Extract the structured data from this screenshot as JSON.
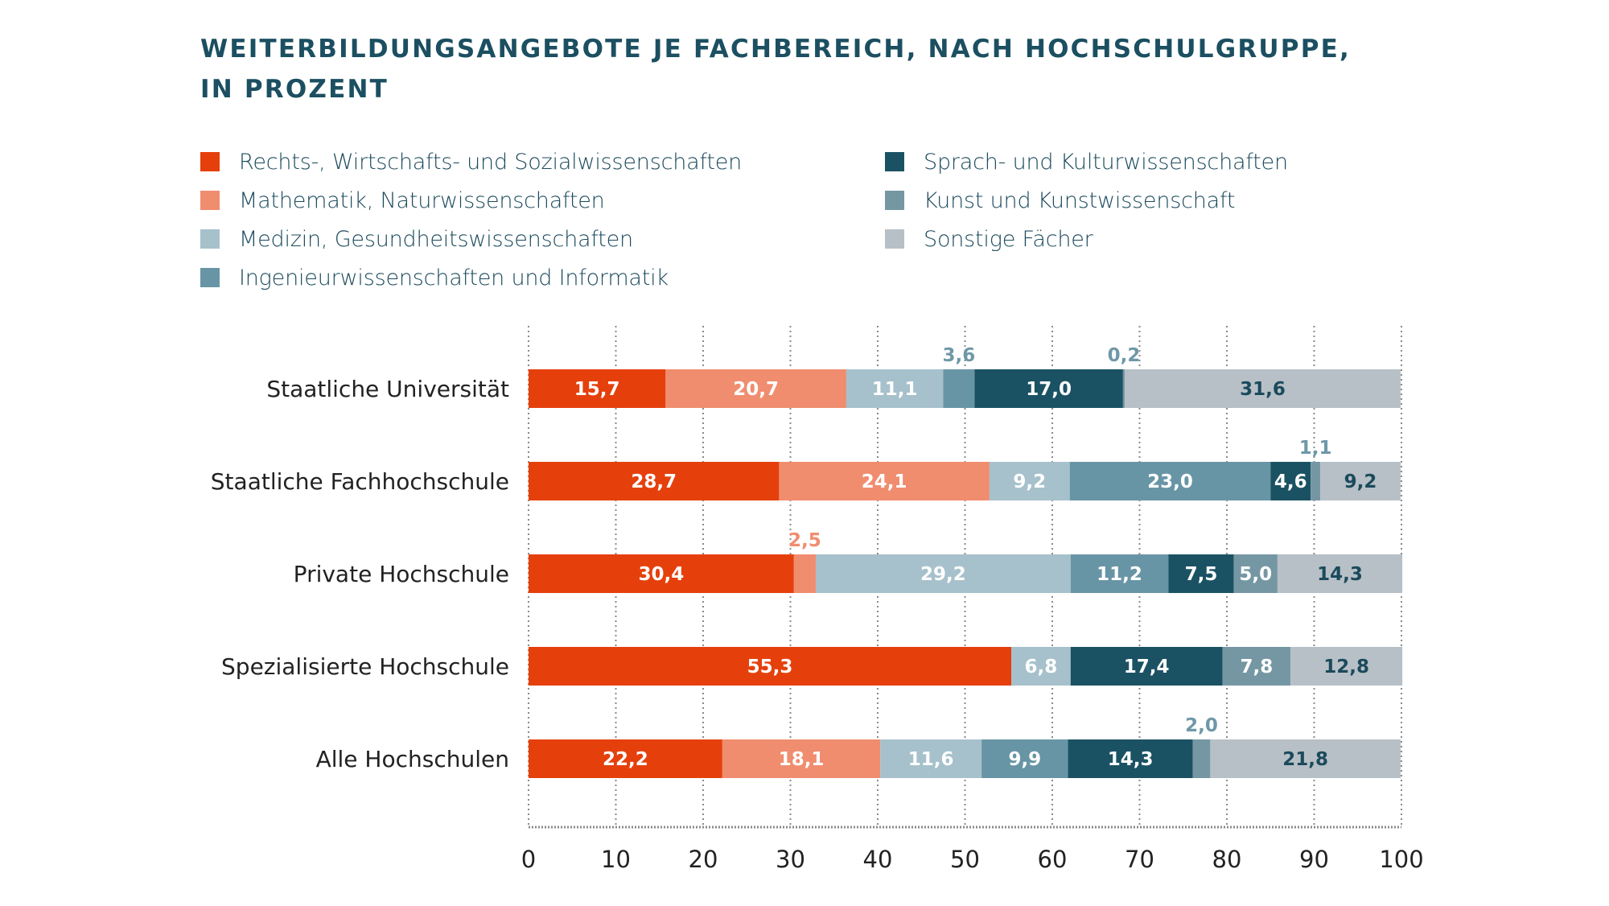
{
  "title_line1": "WEITERBILDUNGSANGEBOTE JE FACHBEREICH, NACH HOCHSCHULGRUPPE,",
  "title_line2": "IN PROZENT",
  "chart_data": {
    "type": "bar",
    "orientation": "horizontal",
    "stacked": true,
    "title": "WEITERBILDUNGSANGEBOTE JE FACHBEREICH, NACH HOCHSCHULGRUPPE, IN PROZENT",
    "xlabel": "",
    "ylabel": "",
    "xlim": [
      0,
      100
    ],
    "xticks": [
      "0",
      "10",
      "20",
      "30",
      "40",
      "50",
      "60",
      "70",
      "80",
      "90",
      "100"
    ],
    "grid": "vertical-dotted",
    "legend_position": "top",
    "categories": [
      "Staatliche Universität",
      "Staatliche Fachhochschule",
      "Private Hochschule",
      "Spezialisierte Hochschule",
      "Alle Hochschulen"
    ],
    "series": [
      {
        "name": "Rechts-, Wirtschafts- und Sozialwissenschaften",
        "color": "#e5400c",
        "label_color": "#ffffff",
        "values": [
          15.7,
          28.7,
          30.4,
          55.3,
          22.2
        ],
        "labels": [
          "15,7",
          "28,7",
          "30,4",
          "55,3",
          "22,2"
        ]
      },
      {
        "name": "Mathematik, Naturwissenschaften",
        "color": "#f08d6f",
        "label_color": "#ffffff",
        "values": [
          20.7,
          24.1,
          2.5,
          0,
          18.1
        ],
        "labels": [
          "20,7",
          "24,1",
          "2,5",
          "",
          "18,1"
        ],
        "outside": [
          false,
          false,
          true,
          false,
          false
        ]
      },
      {
        "name": "Medizin, Gesundheitswissenschaften",
        "color": "#a6c1cb",
        "label_color": "#ffffff",
        "values": [
          11.1,
          9.2,
          29.2,
          6.8,
          11.6
        ],
        "labels": [
          "11,1",
          "9,2",
          "29,2",
          "6,8",
          "11,6"
        ]
      },
      {
        "name": "Ingenieurwissenschaften und Informatik",
        "color": "#6895a5",
        "label_color": "#ffffff",
        "values": [
          3.6,
          23.0,
          11.2,
          0,
          9.9
        ],
        "labels": [
          "3,6",
          "23,0",
          "11,2",
          "",
          "9,9"
        ],
        "outside": [
          true,
          false,
          false,
          false,
          false
        ]
      },
      {
        "name": "Sprach- und Kulturwissenschaften",
        "color": "#1b5263",
        "label_color": "#ffffff",
        "values": [
          17.0,
          4.6,
          7.5,
          17.4,
          14.3
        ],
        "labels": [
          "17,0",
          "4,6",
          "7,5",
          "17,4",
          "14,3"
        ]
      },
      {
        "name": "Kunst und Kunstwissenschaft",
        "color": "#7597a3",
        "label_color": "#ffffff",
        "values": [
          0.2,
          1.1,
          5.0,
          7.8,
          2.0
        ],
        "labels": [
          "0,2",
          "1,1",
          "5,0",
          "7,8",
          "2,0"
        ],
        "outside": [
          true,
          true,
          false,
          false,
          true
        ]
      },
      {
        "name": "Sonstige Fächer",
        "color": "#b7c0c6",
        "label_color": "#1b4a5c",
        "values": [
          31.6,
          9.2,
          14.3,
          12.8,
          21.8
        ],
        "labels": [
          "31,6",
          "9,2",
          "14,3",
          "12,8",
          "21,8"
        ]
      }
    ]
  },
  "legend": [
    {
      "label": "Rechts-, Wirtschafts- und Sozialwissenschaften",
      "color": "#e5400c"
    },
    {
      "label": "Mathematik, Naturwissenschaften",
      "color": "#f08d6f"
    },
    {
      "label": "Medizin, Gesundheitswissenschaften",
      "color": "#a6c1cb"
    },
    {
      "label": "Ingenieurwissenschaften und Informatik",
      "color": "#6895a5"
    },
    {
      "label": "Sprach- und Kulturwissenschaften",
      "color": "#1b5263"
    },
    {
      "label": "Kunst und Kunstwissenschaft",
      "color": "#7597a3"
    },
    {
      "label": "Sonstige Fächer",
      "color": "#b7c0c6"
    }
  ]
}
